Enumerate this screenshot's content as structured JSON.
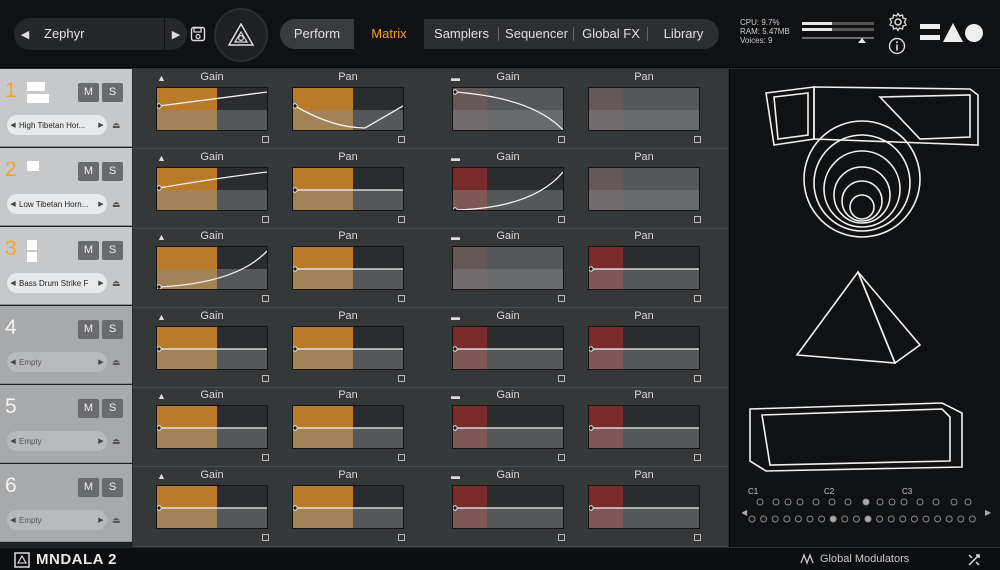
{
  "preset": {
    "name": "Zephyr",
    "prev_icon": "triangle-left",
    "next_icon": "triangle-right"
  },
  "tabs": [
    {
      "label": "Perform"
    },
    {
      "label": "Matrix"
    },
    {
      "label": "Samplers"
    },
    {
      "label": "Sequencer"
    },
    {
      "label": "Global FX"
    },
    {
      "label": "Library"
    }
  ],
  "active_tab": "Matrix",
  "stats": {
    "cpu": "CPU: 9.7%",
    "ram": "RAM: 5.47MB",
    "voices": "Voices: 9"
  },
  "colors": {
    "accent": "#f0a228",
    "gain_fill": "#b97a2a",
    "pan_fill": "#7a2a2a"
  },
  "tracks": [
    {
      "number": "1",
      "sample": "High Tibetan Hor...",
      "mute": "M",
      "solo": "S",
      "empty": false
    },
    {
      "number": "2",
      "sample": "Low Tibetan Horn...",
      "mute": "M",
      "solo": "S",
      "empty": false
    },
    {
      "number": "3",
      "sample": "Bass Drum Strike F",
      "mute": "M",
      "solo": "S",
      "empty": false
    },
    {
      "number": "4",
      "sample": "Empty",
      "mute": "M",
      "solo": "S",
      "empty": true
    },
    {
      "number": "5",
      "sample": "Empty",
      "mute": "M",
      "solo": "S",
      "empty": true
    },
    {
      "number": "6",
      "sample": "Empty",
      "mute": "M",
      "solo": "S",
      "empty": true
    }
  ],
  "matrix_labels": {
    "gain": "Gain",
    "pan": "Pan"
  },
  "keyboard": {
    "labels": [
      "C1",
      "C2",
      "C3"
    ]
  },
  "footer": {
    "product": "MNDALA 2",
    "global_modulators": "Global Modulators"
  }
}
